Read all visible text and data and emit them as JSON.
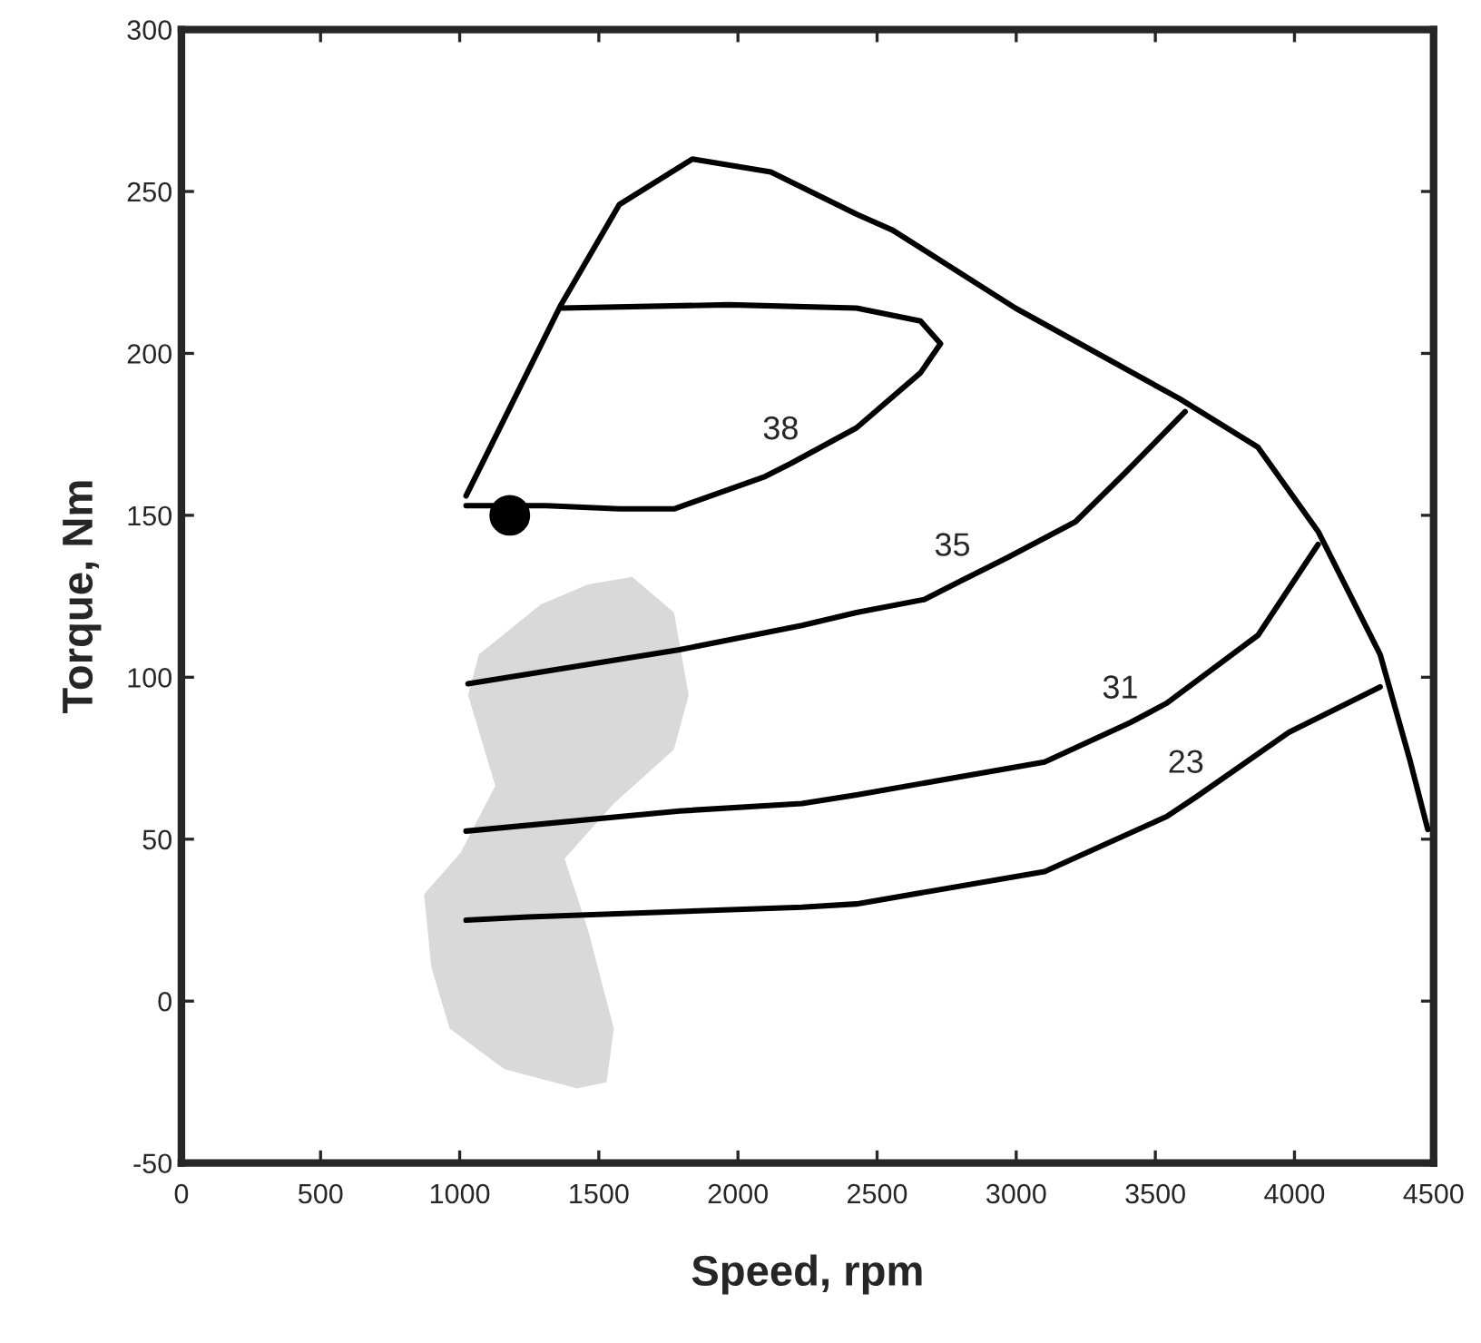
{
  "chart_data": {
    "type": "line",
    "xlabel": "Speed, rpm",
    "ylabel": "Torque, Nm",
    "xlim": [
      0,
      4500
    ],
    "ylim": [
      -50,
      300
    ],
    "xticks": [
      0,
      500,
      1000,
      1500,
      2000,
      2500,
      3000,
      3500,
      4000,
      4500
    ],
    "yticks": [
      -50,
      0,
      50,
      100,
      150,
      200,
      250,
      300
    ],
    "grid": false,
    "line_style": "solid",
    "series": [
      {
        "type": "area",
        "color": "#d9d9d9",
        "x": [
          1620,
          1770,
          1823,
          1770,
          1554,
          1377,
          1462,
          1554,
          1528,
          1423,
          1161,
          964,
          898,
          872,
          1003,
          1128,
          1030,
          1069,
          1292,
          1462,
          1620
        ],
        "values": [
          131,
          120,
          94.5,
          77.7,
          61,
          44,
          21.7,
          -8.5,
          -25,
          -27,
          -21,
          -8.5,
          10.5,
          33,
          45.8,
          66.5,
          94.5,
          107,
          122.5,
          128.7,
          131
        ]
      },
      {
        "color": "#000000",
        "x": [
          1023,
          1364,
          1574,
          1836,
          2118,
          2426,
          2557,
          2997,
          3587,
          3869,
          4085,
          4308,
          4413,
          4479
        ],
        "values": [
          156,
          215,
          246,
          260,
          256,
          243,
          238,
          214,
          186,
          171,
          145,
          107,
          75,
          53
        ]
      },
      {
        "color": "#000000",
        "x": [
          1364,
          1967,
          2426,
          2656,
          2728,
          2656,
          2426,
          2190,
          2098,
          1770,
          1574,
          1311,
          1023
        ],
        "values": [
          214,
          215,
          214,
          210,
          203,
          194,
          177,
          166,
          162,
          152,
          152,
          153,
          153
        ]
      },
      {
        "color": "#000000",
        "x": [
          1030,
          1790,
          2230,
          2426,
          2669,
          2807,
          2970,
          3213,
          3390,
          3607
        ],
        "values": [
          98,
          108.5,
          116,
          120,
          124,
          130,
          137,
          148,
          163,
          182
        ]
      },
      {
        "color": "#000000",
        "x": [
          1023,
          1790,
          2230,
          2426,
          3102,
          3410,
          3541,
          3869,
          4085
        ],
        "values": [
          52.5,
          58.7,
          61,
          63.7,
          73.8,
          86,
          92,
          113,
          141
        ]
      },
      {
        "color": "#000000",
        "x": [
          1023,
          1246,
          2230,
          2426,
          3102,
          3541,
          3646,
          3980,
          4308
        ],
        "values": [
          25,
          26,
          29,
          30,
          40,
          57,
          63,
          83,
          97
        ]
      },
      {
        "type": "scatter",
        "marker": "circle",
        "color": "#000000",
        "x": [
          1180
        ],
        "values": [
          150
        ]
      }
    ],
    "annotations": [
      {
        "text": "38",
        "x": 2190,
        "y": 166
      },
      {
        "text": "35",
        "x": 2807,
        "y": 130
      },
      {
        "text": "31",
        "x": 3410,
        "y": 86
      },
      {
        "text": "23",
        "x": 3646,
        "y": 63
      }
    ]
  }
}
